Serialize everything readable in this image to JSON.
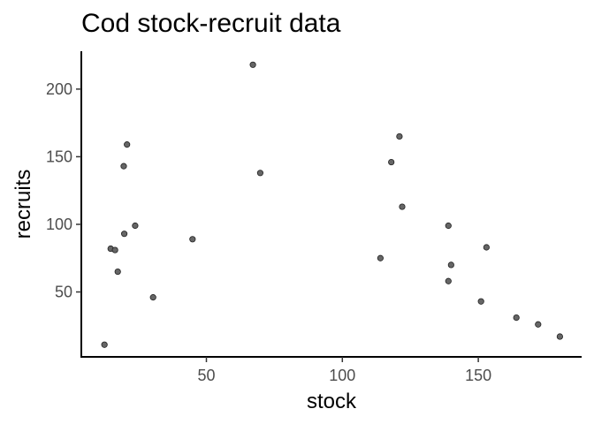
{
  "chart_data": {
    "type": "scatter",
    "title": "Cod stock-recruit data",
    "xlabel": "stock",
    "ylabel": "recruits",
    "xlim": [
      4,
      188
    ],
    "ylim": [
      2,
      228
    ],
    "xticks": [
      50,
      100,
      150
    ],
    "yticks": [
      50,
      100,
      150,
      200
    ],
    "grid": false,
    "legend": "none",
    "point_color": "#666666",
    "points": [
      {
        "x": 12.5,
        "y": 11
      },
      {
        "x": 14.8,
        "y": 82
      },
      {
        "x": 16.4,
        "y": 81
      },
      {
        "x": 17.4,
        "y": 65
      },
      {
        "x": 19.6,
        "y": 143
      },
      {
        "x": 19.8,
        "y": 93
      },
      {
        "x": 20.8,
        "y": 159
      },
      {
        "x": 23.8,
        "y": 99
      },
      {
        "x": 30.4,
        "y": 46
      },
      {
        "x": 44.9,
        "y": 89
      },
      {
        "x": 67.1,
        "y": 218
      },
      {
        "x": 69.8,
        "y": 138
      },
      {
        "x": 114.0,
        "y": 75
      },
      {
        "x": 118.0,
        "y": 146
      },
      {
        "x": 121.0,
        "y": 165
      },
      {
        "x": 122.0,
        "y": 113
      },
      {
        "x": 139.0,
        "y": 99
      },
      {
        "x": 139.0,
        "y": 58
      },
      {
        "x": 140.0,
        "y": 70
      },
      {
        "x": 151.0,
        "y": 43
      },
      {
        "x": 153.0,
        "y": 83
      },
      {
        "x": 164.0,
        "y": 31
      },
      {
        "x": 172.0,
        "y": 26
      },
      {
        "x": 180.0,
        "y": 17
      }
    ]
  }
}
